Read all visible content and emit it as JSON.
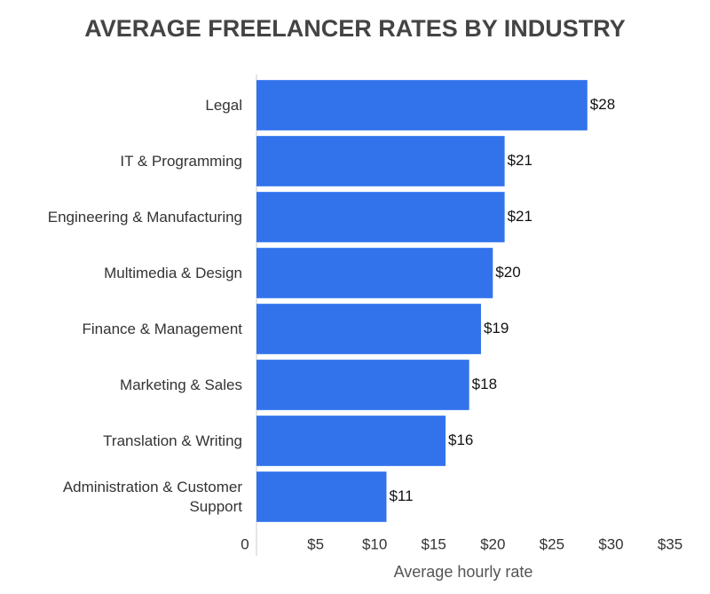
{
  "chart_data": {
    "type": "bar",
    "orientation": "horizontal",
    "title": "AVERAGE FREELANCER RATES BY INDUSTRY",
    "x_label": "Average hourly rate",
    "categories": [
      "Legal",
      "IT & Programming",
      "Engineering & Manufacturing",
      "Multimedia & Design",
      "Finance & Management",
      "Marketing & Sales",
      "Translation & Writing",
      "Administration & Customer Support"
    ],
    "values": [
      28,
      21,
      21,
      20,
      19,
      18,
      16,
      11
    ],
    "value_labels": [
      "$28",
      "$21",
      "$21",
      "$20",
      "$19",
      "$18",
      "$16",
      "$11"
    ],
    "color": "#3273ec",
    "xlim": [
      0,
      35
    ],
    "xticks": [
      0,
      {
        "value": 5,
        "label": "$5"
      },
      {
        "value": 10,
        "label": "$10"
      },
      {
        "value": 15,
        "label": "$15"
      },
      {
        "value": 20,
        "label": "$20"
      },
      {
        "value": 25,
        "label": "$25"
      },
      {
        "value": 30,
        "label": "$30"
      },
      {
        "value": 35,
        "label": "$35"
      }
    ],
    "grid": false
  }
}
